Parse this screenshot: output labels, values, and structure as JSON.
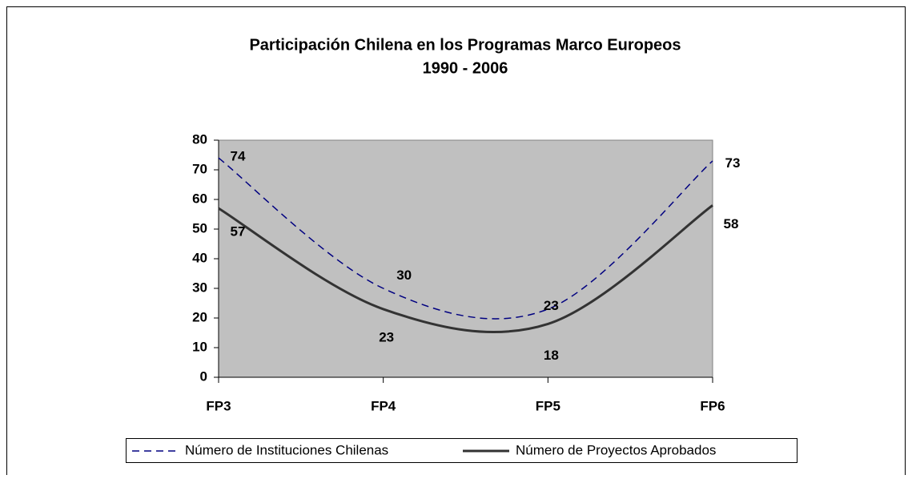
{
  "chart_data": {
    "type": "line",
    "title": [
      "Participación Chilena en los Programas Marco Europeos",
      "1990 - 2006"
    ],
    "categories": [
      "FP3",
      "FP4",
      "FP5",
      "FP6"
    ],
    "series": [
      {
        "name": "Número de Instituciones Chilenas",
        "color": "#000080",
        "dash": true,
        "values": [
          74,
          30,
          23,
          73
        ]
      },
      {
        "name": "Número de Proyectos Aprobados",
        "color": "#333333",
        "dash": false,
        "values": [
          57,
          23,
          18,
          58
        ]
      }
    ],
    "ylim": [
      0,
      80
    ],
    "yticks": [
      0,
      10,
      20,
      30,
      40,
      50,
      60,
      70,
      80
    ],
    "plot_background": "#c0c0c0",
    "legend": "bottom"
  }
}
